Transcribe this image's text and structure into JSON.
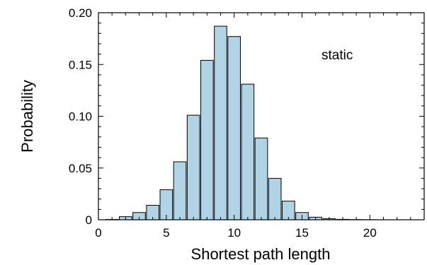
{
  "chart_data": {
    "type": "bar",
    "title": "",
    "xlabel": "Shortest path length",
    "ylabel": "Probability",
    "annotation": "static",
    "xlim": [
      0,
      24
    ],
    "ylim": [
      0,
      0.2
    ],
    "x_ticks": [
      0,
      5,
      10,
      15,
      20
    ],
    "x_tick_labels": [
      "0",
      "5",
      "10",
      "15",
      "20"
    ],
    "y_ticks": [
      0,
      0.05,
      0.1,
      0.15,
      0.2
    ],
    "y_tick_labels": [
      "0",
      "0.05",
      "0.10",
      "0.15",
      "0.20"
    ],
    "bar_fill": "#b1d3e6",
    "bar_stroke": "#000000",
    "grid": false,
    "x": [
      1,
      2,
      3,
      4,
      5,
      6,
      7,
      8,
      9,
      10,
      11,
      12,
      13,
      14,
      15,
      16,
      17,
      18,
      19,
      20,
      21,
      22,
      23
    ],
    "values": [
      0.0003,
      0.003,
      0.007,
      0.014,
      0.029,
      0.056,
      0.101,
      0.154,
      0.187,
      0.177,
      0.131,
      0.079,
      0.04,
      0.018,
      0.007,
      0.0025,
      0.001,
      0.0004,
      0.0002,
      0.0001,
      5e-05,
      2e-05,
      1e-05
    ]
  }
}
